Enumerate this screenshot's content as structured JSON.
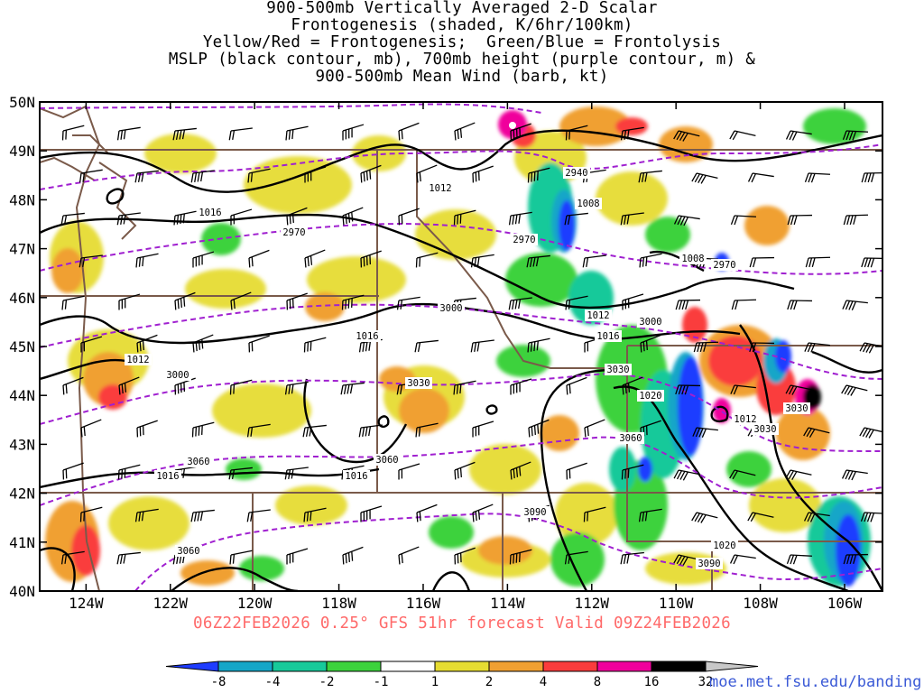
{
  "title_lines": [
    "900-500mb Vertically Averaged 2-D Scalar",
    "Frontogenesis (shaded, K/6hr/100km)",
    "Yellow/Red = Frontogenesis;  Green/Blue = Frontolysis",
    "MSLP (black contour, mb), 700mb height (purple contour, m) &",
    "900-500mb Mean Wind (barb, kt)"
  ],
  "subtitle": "06Z22FEB2026 0.25° GFS 51hr forecast Valid 09Z24FEB2026",
  "credit": "moe.met.fsu.edu/banding",
  "map": {
    "lon_labels": [
      "124W",
      "122W",
      "120W",
      "118W",
      "116W",
      "114W",
      "112W",
      "110W",
      "108W",
      "106W"
    ],
    "lon_values": [
      -124,
      -122,
      -120,
      -118,
      -116,
      -114,
      -112,
      -110,
      -108,
      -106
    ],
    "lat_labels": [
      "50N",
      "49N",
      "48N",
      "47N",
      "46N",
      "45N",
      "44N",
      "43N",
      "42N",
      "41N",
      "40N"
    ],
    "lat_values": [
      50,
      49,
      48,
      47,
      46,
      45,
      44,
      43,
      42,
      41,
      40
    ],
    "lon_range": [
      -125.1,
      -105.1
    ],
    "lat_range": [
      40,
      50
    ],
    "mslp_labels": [
      "1016",
      "1012",
      "1008",
      "1008",
      "1012",
      "1016",
      "1016",
      "1012",
      "1020",
      "1012",
      "1016",
      "1016",
      "1020"
    ],
    "height_labels": [
      "2940",
      "2970",
      "2970",
      "2970",
      "3000",
      "3000",
      "3000",
      "3030",
      "3030",
      "3030",
      "3030",
      "3060",
      "3060",
      "3060",
      "3060",
      "3090",
      "3090"
    ],
    "colorbar": {
      "tick_labels": [
        "-8",
        "-4",
        "-2",
        "-1",
        "1",
        "2",
        "4",
        "8",
        "16",
        "32"
      ],
      "colors": [
        "#1e3cff",
        "#16a6c8",
        "#17c99a",
        "#3cd23c",
        "#ffffff",
        "#e6dc32",
        "#f0a032",
        "#fa3c3c",
        "#f0009c",
        "#000000",
        "#c8c8c8"
      ],
      "color_names": [
        "blue",
        "teal",
        "sea-green",
        "green",
        "white",
        "yellow",
        "orange",
        "red",
        "magenta",
        "black",
        "gray"
      ]
    }
  }
}
